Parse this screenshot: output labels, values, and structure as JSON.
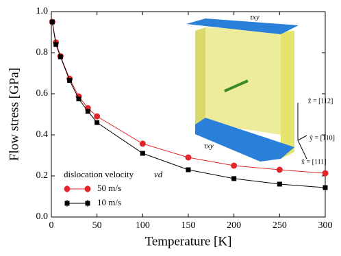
{
  "chart_data": {
    "type": "line",
    "xlabel": "Temperature [K]",
    "ylabel": "Flow stress [GPa]",
    "xlim": [
      0,
      300
    ],
    "ylim": [
      0.0,
      1.0
    ],
    "xticks": [
      0,
      50,
      100,
      150,
      200,
      250,
      300
    ],
    "yticks": [
      {
        "value": 0,
        "label": "0.0"
      },
      {
        "value": 0.2,
        "label": "0.2"
      },
      {
        "value": 0.4,
        "label": "0.4"
      },
      {
        "value": 0.6,
        "label": "0.6"
      },
      {
        "value": 0.8,
        "label": "0.8"
      },
      {
        "value": 1.0,
        "label": "1.0"
      }
    ],
    "legend_title": "dislocation velocity",
    "legend_symbol": "vd",
    "legend": "lower left",
    "x": [
      1,
      5,
      10,
      20,
      30,
      40,
      50,
      100,
      150,
      200,
      250,
      300
    ],
    "series": [
      {
        "name": "50 m/s",
        "color": "#e0262b",
        "marker": "circle",
        "values": [
          0.95,
          0.85,
          0.783,
          0.673,
          0.587,
          0.53,
          0.49,
          0.357,
          0.29,
          0.25,
          0.23,
          0.213
        ]
      },
      {
        "name": "10 m/s",
        "color": "#000000",
        "marker": "square",
        "values": [
          0.95,
          0.84,
          0.78,
          0.665,
          0.575,
          0.515,
          0.46,
          0.31,
          0.23,
          0.187,
          0.16,
          0.143
        ]
      }
    ],
    "annotations": [
      "τxy",
      "τxy",
      "ẑ = [112]",
      "ŷ = [110]",
      "x̂ = [111]"
    ]
  }
}
